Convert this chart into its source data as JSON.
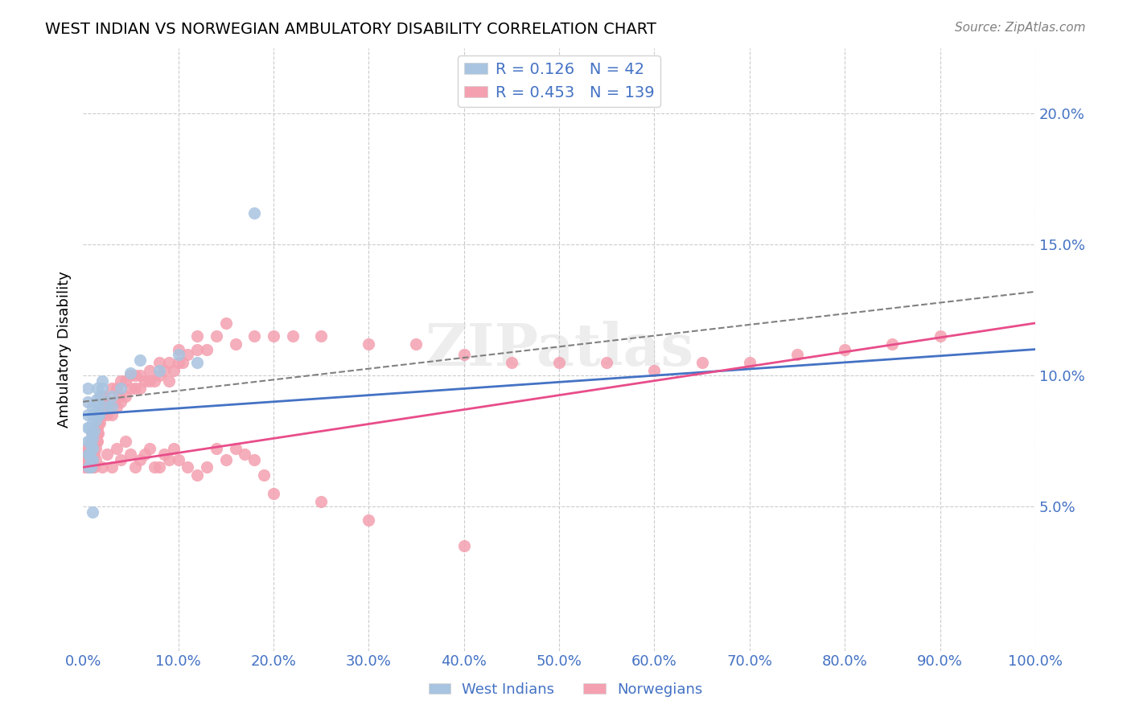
{
  "title": "WEST INDIAN VS NORWEGIAN AMBULATORY DISABILITY CORRELATION CHART",
  "source": "Source: ZipAtlas.com",
  "ylabel": "Ambulatory Disability",
  "xlabel": "",
  "watermark": "ZIPatlas",
  "legend_blue_r": "0.126",
  "legend_blue_n": "42",
  "legend_pink_r": "0.453",
  "legend_pink_n": "139",
  "xlim": [
    0,
    1.0
  ],
  "ylim": [
    -0.005,
    0.225
  ],
  "xticks": [
    0.0,
    0.1,
    0.2,
    0.3,
    0.4,
    0.5,
    0.6,
    0.7,
    0.8,
    0.9,
    1.0
  ],
  "yticks": [
    0.05,
    0.1,
    0.15,
    0.2
  ],
  "ytick_labels": [
    "5.0%",
    "10.0%",
    "15.0%",
    "20.0%"
  ],
  "xtick_labels": [
    "0.0%",
    "10.0%",
    "20.0%",
    "30.0%",
    "40.0%",
    "50.0%",
    "60.0%",
    "70.0%",
    "80.0%",
    "90.0%",
    "100.0%"
  ],
  "blue_color": "#a8c4e0",
  "pink_color": "#f4a0b0",
  "blue_line_color": "#4472c4",
  "pink_line_color": "#e84d8a",
  "trend_blue_intercept": 0.085,
  "trend_blue_slope": 0.025,
  "trend_pink_intercept": 0.065,
  "trend_pink_slope": 0.055,
  "background_color": "#ffffff",
  "grid_color": "#cccccc",
  "axis_label_color": "#4472c4",
  "blue_scatter": {
    "x": [
      0.005,
      0.005,
      0.005,
      0.005,
      0.005,
      0.006,
      0.006,
      0.007,
      0.007,
      0.007,
      0.008,
      0.008,
      0.009,
      0.009,
      0.01,
      0.01,
      0.01,
      0.01,
      0.01,
      0.01,
      0.012,
      0.013,
      0.014,
      0.015,
      0.015,
      0.016,
      0.016,
      0.017,
      0.018,
      0.02,
      0.02,
      0.025,
      0.03,
      0.03,
      0.04,
      0.05,
      0.06,
      0.08,
      0.1,
      0.12,
      0.18,
      0.01
    ],
    "y": [
      0.075,
      0.08,
      0.085,
      0.09,
      0.095,
      0.065,
      0.07,
      0.075,
      0.08,
      0.07,
      0.065,
      0.068,
      0.073,
      0.078,
      0.072,
      0.076,
      0.068,
      0.082,
      0.085,
      0.088,
      0.079,
      0.083,
      0.091,
      0.095,
      0.088,
      0.085,
      0.09,
      0.085,
      0.092,
      0.095,
      0.098,
      0.088,
      0.092,
      0.088,
      0.095,
      0.101,
      0.106,
      0.102,
      0.108,
      0.105,
      0.162,
      0.048
    ]
  },
  "pink_scatter": {
    "x": [
      0.002,
      0.003,
      0.004,
      0.004,
      0.005,
      0.005,
      0.005,
      0.006,
      0.006,
      0.006,
      0.007,
      0.007,
      0.007,
      0.008,
      0.008,
      0.008,
      0.009,
      0.009,
      0.009,
      0.01,
      0.01,
      0.01,
      0.01,
      0.011,
      0.011,
      0.012,
      0.012,
      0.012,
      0.013,
      0.013,
      0.014,
      0.014,
      0.015,
      0.015,
      0.016,
      0.016,
      0.017,
      0.018,
      0.02,
      0.02,
      0.02,
      0.022,
      0.022,
      0.025,
      0.025,
      0.027,
      0.03,
      0.03,
      0.03,
      0.032,
      0.035,
      0.035,
      0.038,
      0.04,
      0.04,
      0.045,
      0.045,
      0.05,
      0.05,
      0.055,
      0.055,
      0.06,
      0.06,
      0.065,
      0.07,
      0.07,
      0.075,
      0.08,
      0.08,
      0.085,
      0.09,
      0.09,
      0.095,
      0.1,
      0.1,
      0.105,
      0.11,
      0.12,
      0.12,
      0.13,
      0.14,
      0.15,
      0.16,
      0.18,
      0.2,
      0.22,
      0.25,
      0.3,
      0.35,
      0.4,
      0.45,
      0.5,
      0.55,
      0.6,
      0.65,
      0.7,
      0.75,
      0.8,
      0.85,
      0.9,
      0.008,
      0.009,
      0.011,
      0.012,
      0.013,
      0.014,
      0.015,
      0.016,
      0.017,
      0.02,
      0.025,
      0.03,
      0.035,
      0.04,
      0.045,
      0.05,
      0.055,
      0.06,
      0.065,
      0.07,
      0.075,
      0.08,
      0.085,
      0.09,
      0.095,
      0.1,
      0.11,
      0.12,
      0.13,
      0.14,
      0.15,
      0.16,
      0.17,
      0.18,
      0.19,
      0.2,
      0.25,
      0.3,
      0.4
    ],
    "y": [
      0.065,
      0.07,
      0.068,
      0.072,
      0.065,
      0.068,
      0.07,
      0.065,
      0.068,
      0.072,
      0.065,
      0.068,
      0.07,
      0.065,
      0.068,
      0.072,
      0.068,
      0.07,
      0.075,
      0.068,
      0.072,
      0.075,
      0.078,
      0.072,
      0.075,
      0.07,
      0.075,
      0.078,
      0.072,
      0.078,
      0.075,
      0.08,
      0.075,
      0.08,
      0.078,
      0.082,
      0.085,
      0.082,
      0.085,
      0.088,
      0.092,
      0.088,
      0.092,
      0.085,
      0.09,
      0.088,
      0.09,
      0.085,
      0.095,
      0.09,
      0.088,
      0.095,
      0.092,
      0.09,
      0.098,
      0.092,
      0.098,
      0.095,
      0.1,
      0.095,
      0.1,
      0.095,
      0.1,
      0.098,
      0.102,
      0.098,
      0.098,
      0.1,
      0.105,
      0.102,
      0.098,
      0.105,
      0.102,
      0.105,
      0.11,
      0.105,
      0.108,
      0.11,
      0.115,
      0.11,
      0.115,
      0.12,
      0.112,
      0.115,
      0.115,
      0.115,
      0.115,
      0.112,
      0.112,
      0.108,
      0.105,
      0.105,
      0.105,
      0.102,
      0.105,
      0.105,
      0.108,
      0.11,
      0.112,
      0.115,
      0.07,
      0.065,
      0.072,
      0.065,
      0.068,
      0.078,
      0.078,
      0.082,
      0.085,
      0.065,
      0.07,
      0.065,
      0.072,
      0.068,
      0.075,
      0.07,
      0.065,
      0.068,
      0.07,
      0.072,
      0.065,
      0.065,
      0.07,
      0.068,
      0.072,
      0.068,
      0.065,
      0.062,
      0.065,
      0.072,
      0.068,
      0.072,
      0.07,
      0.068,
      0.062,
      0.055,
      0.052,
      0.045,
      0.035
    ]
  }
}
